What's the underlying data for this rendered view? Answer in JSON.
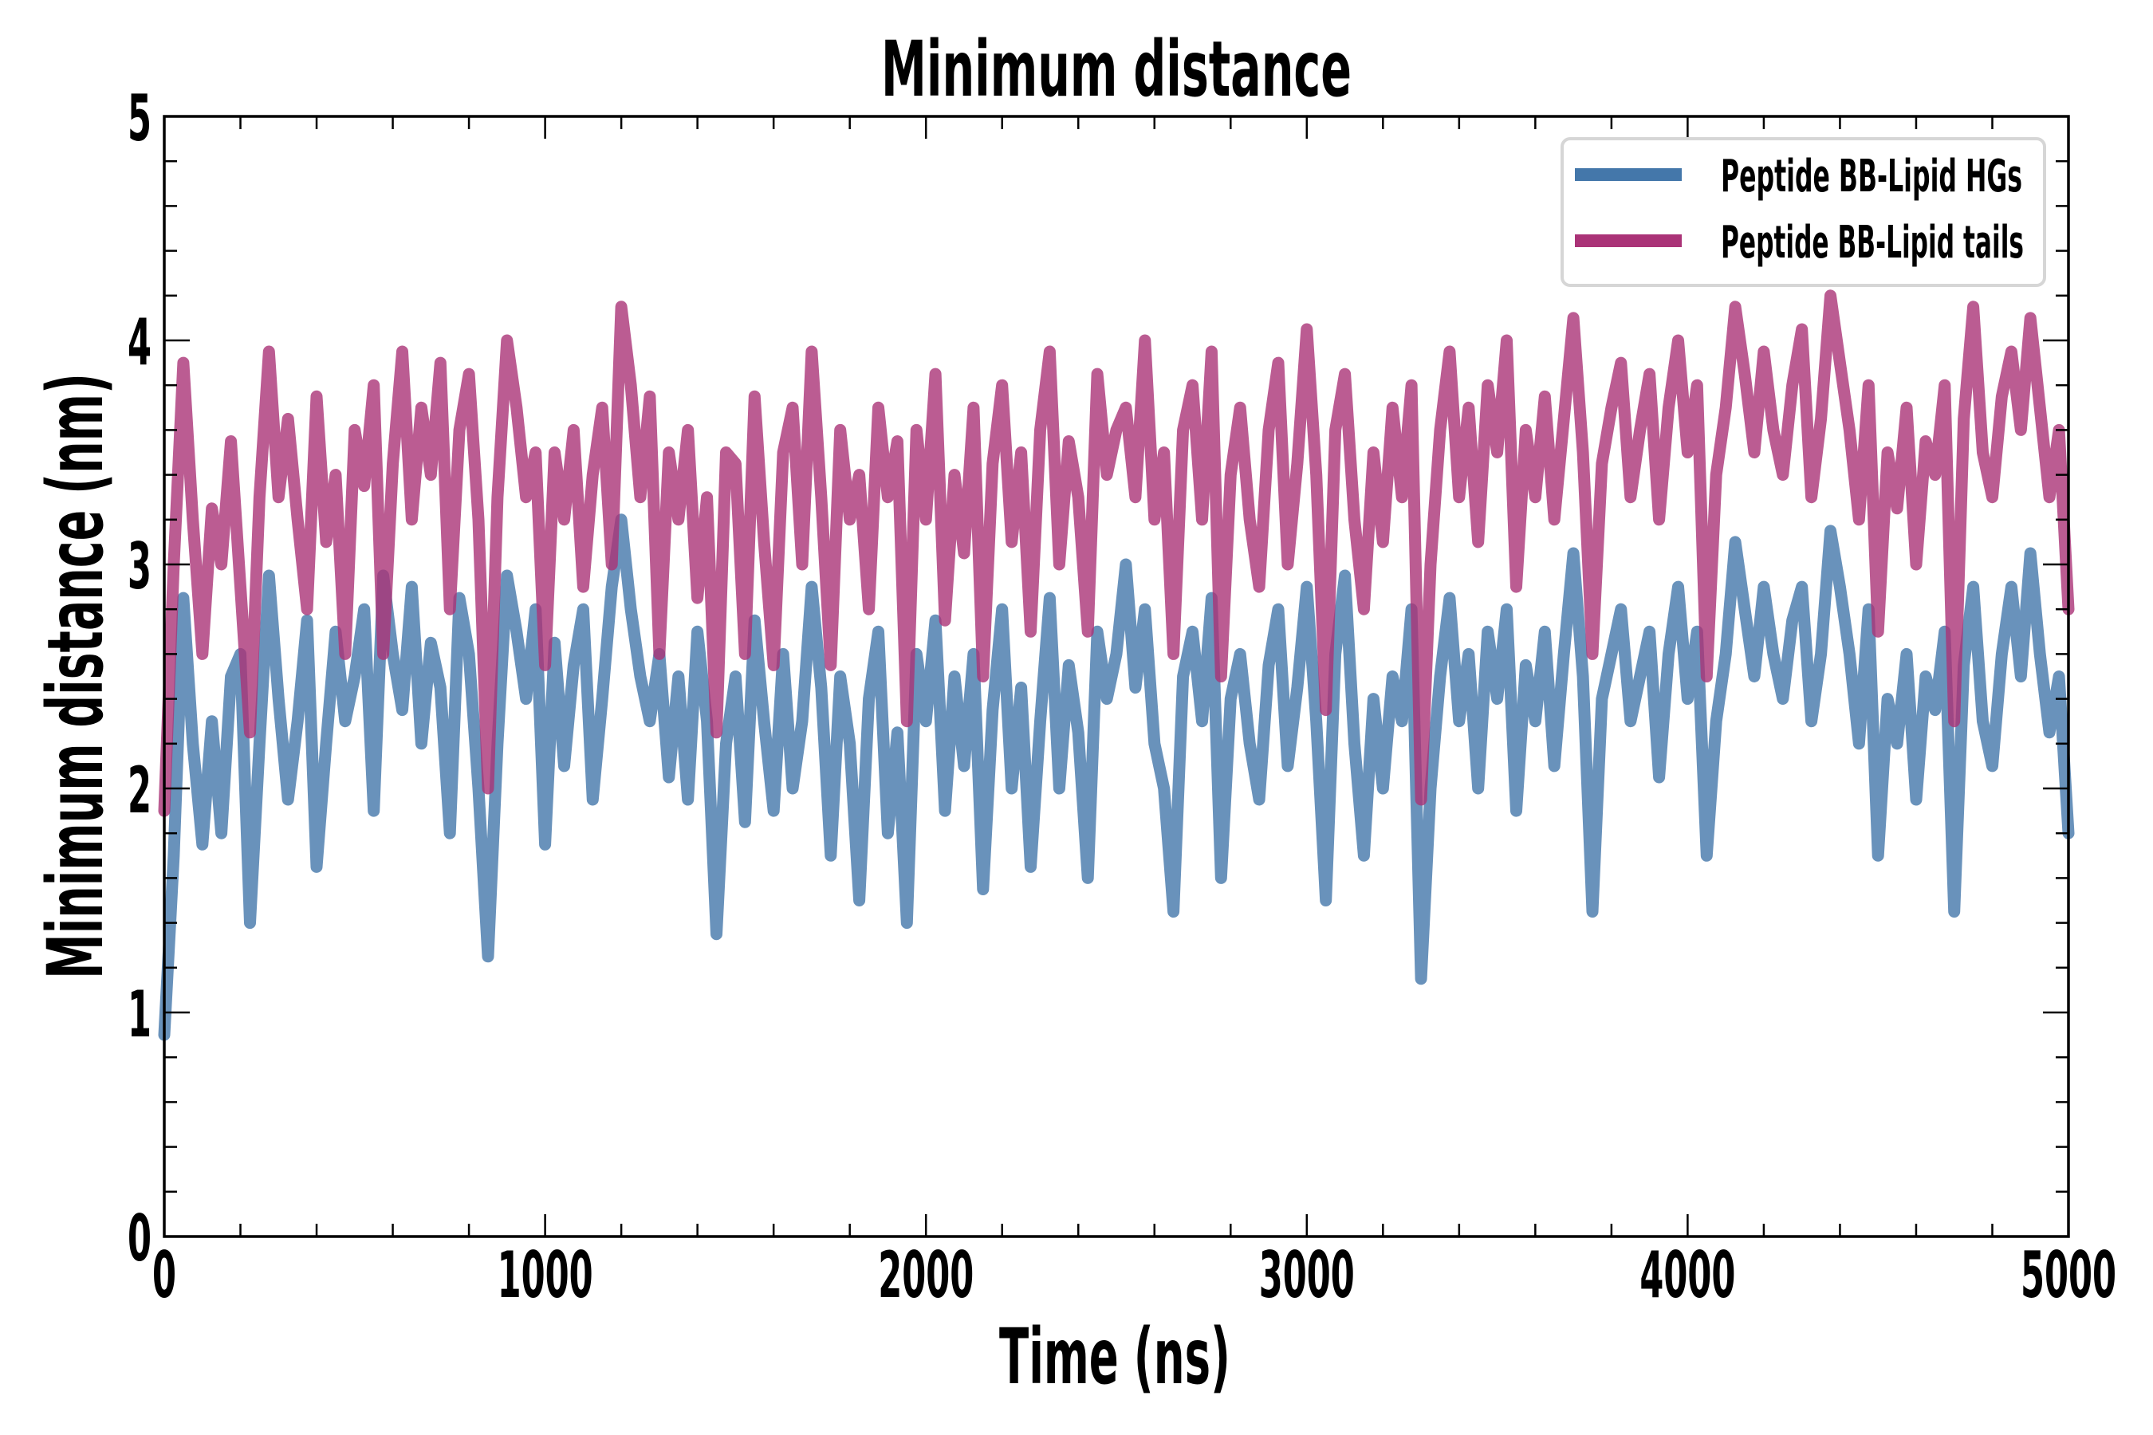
{
  "chart_data": {
    "type": "line",
    "title": "Minimum distance",
    "xlabel": "Time (ns)",
    "ylabel": "Minimum distance (nm)",
    "xlim": [
      0,
      5000
    ],
    "ylim": [
      0,
      5
    ],
    "x_ticks": [
      0,
      1000,
      2000,
      3000,
      4000,
      5000
    ],
    "x_tick_labels": [
      "0",
      "1000",
      "2000",
      "3000",
      "4000",
      "5000"
    ],
    "y_ticks": [
      0,
      1,
      2,
      3,
      4,
      5
    ],
    "y_tick_labels": [
      "0",
      "1",
      "2",
      "3",
      "4",
      "5"
    ],
    "x_minor_step": 200,
    "y_minor_step": 0.2,
    "grid": false,
    "legend_position": "top-right",
    "x": [
      0,
      25,
      50,
      75,
      100,
      125,
      150,
      175,
      200,
      225,
      250,
      275,
      300,
      325,
      350,
      375,
      400,
      425,
      450,
      475,
      500,
      525,
      550,
      575,
      600,
      625,
      650,
      675,
      700,
      725,
      750,
      775,
      800,
      825,
      850,
      875,
      900,
      925,
      950,
      975,
      1000,
      1025,
      1050,
      1075,
      1100,
      1125,
      1150,
      1175,
      1200,
      1225,
      1250,
      1275,
      1300,
      1325,
      1350,
      1375,
      1400,
      1425,
      1450,
      1475,
      1500,
      1525,
      1550,
      1575,
      1600,
      1625,
      1650,
      1675,
      1700,
      1725,
      1750,
      1775,
      1800,
      1825,
      1850,
      1875,
      1900,
      1925,
      1950,
      1975,
      2000,
      2025,
      2050,
      2075,
      2100,
      2125,
      2150,
      2175,
      2200,
      2225,
      2250,
      2275,
      2300,
      2325,
      2350,
      2375,
      2400,
      2425,
      2450,
      2475,
      2500,
      2525,
      2550,
      2575,
      2600,
      2625,
      2650,
      2675,
      2700,
      2725,
      2750,
      2775,
      2800,
      2825,
      2850,
      2875,
      2900,
      2925,
      2950,
      2975,
      3000,
      3025,
      3050,
      3075,
      3100,
      3125,
      3150,
      3175,
      3200,
      3225,
      3250,
      3275,
      3300,
      3325,
      3350,
      3375,
      3400,
      3425,
      3450,
      3475,
      3500,
      3525,
      3550,
      3575,
      3600,
      3625,
      3650,
      3675,
      3700,
      3725,
      3750,
      3775,
      3800,
      3825,
      3850,
      3875,
      3900,
      3925,
      3950,
      3975,
      4000,
      4025,
      4050,
      4075,
      4100,
      4125,
      4150,
      4175,
      4200,
      4225,
      4250,
      4275,
      4300,
      4325,
      4350,
      4375,
      4400,
      4425,
      4450,
      4475,
      4500,
      4525,
      4550,
      4575,
      4600,
      4625,
      4650,
      4675,
      4700,
      4725,
      4750,
      4775,
      4800,
      4825,
      4850,
      4875,
      4900,
      4925,
      4950,
      4975,
      5000
    ],
    "series": [
      {
        "name": "Peptide BB-Lipid HGs",
        "color": "#4477aa",
        "values": [
          0.9,
          1.7,
          2.85,
          2.2,
          1.75,
          2.3,
          1.8,
          2.5,
          2.6,
          1.4,
          2.2,
          2.95,
          2.4,
          1.95,
          2.3,
          2.75,
          1.65,
          2.2,
          2.7,
          2.3,
          2.5,
          2.8,
          1.9,
          2.95,
          2.6,
          2.35,
          2.9,
          2.2,
          2.65,
          2.45,
          1.8,
          2.85,
          2.6,
          2.0,
          1.25,
          2.2,
          2.95,
          2.7,
          2.4,
          2.8,
          1.75,
          2.65,
          2.1,
          2.55,
          2.8,
          1.95,
          2.4,
          2.9,
          3.2,
          2.8,
          2.5,
          2.3,
          2.6,
          2.05,
          2.5,
          1.95,
          2.7,
          2.3,
          1.35,
          2.2,
          2.5,
          1.85,
          2.75,
          2.3,
          1.9,
          2.6,
          2.0,
          2.3,
          2.9,
          2.45,
          1.7,
          2.5,
          2.2,
          1.5,
          2.4,
          2.7,
          1.8,
          2.25,
          1.4,
          2.6,
          2.3,
          2.75,
          1.9,
          2.5,
          2.1,
          2.6,
          1.55,
          2.35,
          2.8,
          2.0,
          2.45,
          1.65,
          2.3,
          2.85,
          2.0,
          2.55,
          2.25,
          1.6,
          2.7,
          2.4,
          2.6,
          3.0,
          2.45,
          2.8,
          2.2,
          2.0,
          1.45,
          2.5,
          2.7,
          2.3,
          2.85,
          1.6,
          2.4,
          2.6,
          2.2,
          1.95,
          2.55,
          2.8,
          2.1,
          2.45,
          2.9,
          2.3,
          1.5,
          2.6,
          2.95,
          2.2,
          1.7,
          2.4,
          2.0,
          2.5,
          2.3,
          2.8,
          1.15,
          2.0,
          2.5,
          2.85,
          2.3,
          2.6,
          2.0,
          2.7,
          2.4,
          2.8,
          1.9,
          2.55,
          2.3,
          2.7,
          2.1,
          2.6,
          3.05,
          2.5,
          1.45,
          2.4,
          2.6,
          2.8,
          2.3,
          2.5,
          2.7,
          2.05,
          2.6,
          2.9,
          2.4,
          2.7,
          1.7,
          2.3,
          2.6,
          3.1,
          2.8,
          2.5,
          2.9,
          2.6,
          2.4,
          2.75,
          2.9,
          2.3,
          2.6,
          3.15,
          2.9,
          2.6,
          2.2,
          2.8,
          1.7,
          2.4,
          2.2,
          2.6,
          1.95,
          2.5,
          2.35,
          2.7,
          1.45,
          2.55,
          2.9,
          2.3,
          2.1,
          2.6,
          2.9,
          2.5,
          3.05,
          2.6,
          2.25,
          2.5,
          1.8
        ]
      },
      {
        "name": "Peptide BB-Lipid tails",
        "color": "#aa3377",
        "values": [
          1.9,
          3.0,
          3.9,
          3.2,
          2.6,
          3.25,
          3.0,
          3.55,
          2.9,
          2.25,
          3.3,
          3.95,
          3.3,
          3.65,
          3.2,
          2.8,
          3.75,
          3.1,
          3.4,
          2.6,
          3.6,
          3.35,
          3.8,
          2.6,
          3.45,
          3.95,
          3.2,
          3.7,
          3.4,
          3.9,
          2.8,
          3.6,
          3.85,
          3.2,
          2.0,
          3.3,
          4.0,
          3.7,
          3.3,
          3.5,
          2.55,
          3.5,
          3.2,
          3.6,
          2.9,
          3.4,
          3.7,
          3.0,
          4.15,
          3.8,
          3.3,
          3.75,
          2.6,
          3.5,
          3.2,
          3.6,
          2.85,
          3.3,
          2.25,
          3.5,
          3.45,
          2.6,
          3.75,
          3.1,
          2.55,
          3.5,
          3.7,
          3.0,
          3.95,
          3.3,
          2.55,
          3.6,
          3.2,
          3.4,
          2.8,
          3.7,
          3.3,
          3.55,
          2.3,
          3.6,
          3.2,
          3.85,
          2.75,
          3.4,
          3.05,
          3.7,
          2.5,
          3.45,
          3.8,
          3.1,
          3.5,
          2.7,
          3.6,
          3.95,
          3.0,
          3.55,
          3.3,
          2.7,
          3.85,
          3.4,
          3.6,
          3.7,
          3.3,
          4.0,
          3.2,
          3.5,
          2.6,
          3.6,
          3.8,
          3.2,
          3.95,
          2.5,
          3.4,
          3.7,
          3.2,
          2.9,
          3.6,
          3.9,
          3.0,
          3.45,
          4.05,
          3.4,
          2.35,
          3.6,
          3.85,
          3.2,
          2.8,
          3.5,
          3.1,
          3.7,
          3.3,
          3.8,
          1.95,
          3.0,
          3.6,
          3.95,
          3.3,
          3.7,
          3.1,
          3.8,
          3.5,
          4.0,
          2.9,
          3.6,
          3.3,
          3.75,
          3.2,
          3.65,
          4.1,
          3.5,
          2.6,
          3.45,
          3.7,
          3.9,
          3.3,
          3.6,
          3.85,
          3.2,
          3.7,
          4.0,
          3.5,
          3.8,
          2.5,
          3.4,
          3.7,
          4.15,
          3.85,
          3.5,
          3.95,
          3.6,
          3.4,
          3.8,
          4.05,
          3.3,
          3.65,
          4.2,
          3.9,
          3.6,
          3.2,
          3.8,
          2.7,
          3.5,
          3.25,
          3.7,
          3.0,
          3.55,
          3.4,
          3.8,
          2.3,
          3.65,
          4.15,
          3.5,
          3.3,
          3.75,
          3.95,
          3.6,
          4.1,
          3.7,
          3.3,
          3.6,
          2.8
        ]
      }
    ]
  }
}
